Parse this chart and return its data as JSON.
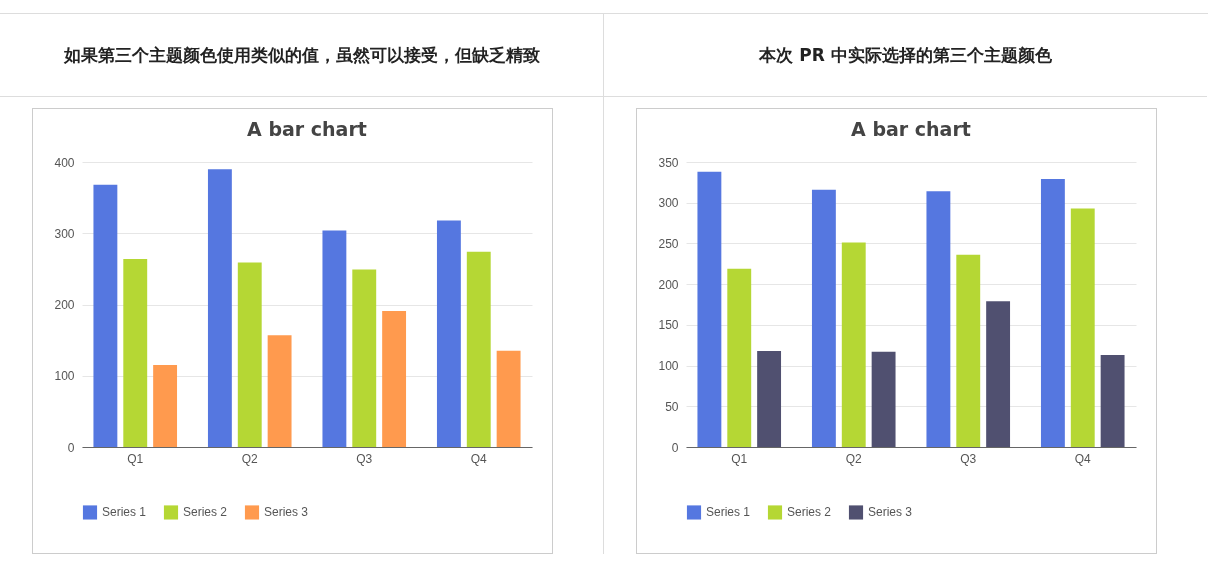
{
  "chart_data": [
    {
      "type": "bar",
      "title": "如果第三个主题颜色使用类似的值，虽然可以接受，但缺乏精致",
      "subtitle": "A bar chart",
      "categories": [
        "Q1",
        "Q2",
        "Q3",
        "Q4"
      ],
      "series": [
        {
          "name": "Series 1",
          "color": "#5577e0",
          "values": [
            368,
            390,
            304,
            318
          ]
        },
        {
          "name": "Series 2",
          "color": "#b5d734",
          "values": [
            264,
            259,
            249,
            274
          ]
        },
        {
          "name": "Series 3",
          "color": "#ff9a4e",
          "values": [
            115,
            157,
            191,
            135
          ]
        }
      ],
      "ylim": [
        0,
        400
      ],
      "yticks": [
        0,
        100,
        200,
        300,
        400
      ],
      "grid": "y",
      "legend": "bottom"
    },
    {
      "type": "bar",
      "title": "本次 PR 中实际选择的第三个主题颜色",
      "subtitle": "A bar chart",
      "categories": [
        "Q1",
        "Q2",
        "Q3",
        "Q4"
      ],
      "series": [
        {
          "name": "Series 1",
          "color": "#5577e0",
          "values": [
            338,
            316,
            314,
            329
          ]
        },
        {
          "name": "Series 2",
          "color": "#b5d734",
          "values": [
            219,
            251,
            236,
            293
          ]
        },
        {
          "name": "Series 3",
          "color": "#505070",
          "values": [
            118,
            117,
            179,
            113
          ]
        }
      ],
      "ylim": [
        0,
        350
      ],
      "yticks": [
        0,
        50,
        100,
        150,
        200,
        250,
        300,
        350
      ],
      "grid": "y",
      "legend": "bottom"
    }
  ]
}
